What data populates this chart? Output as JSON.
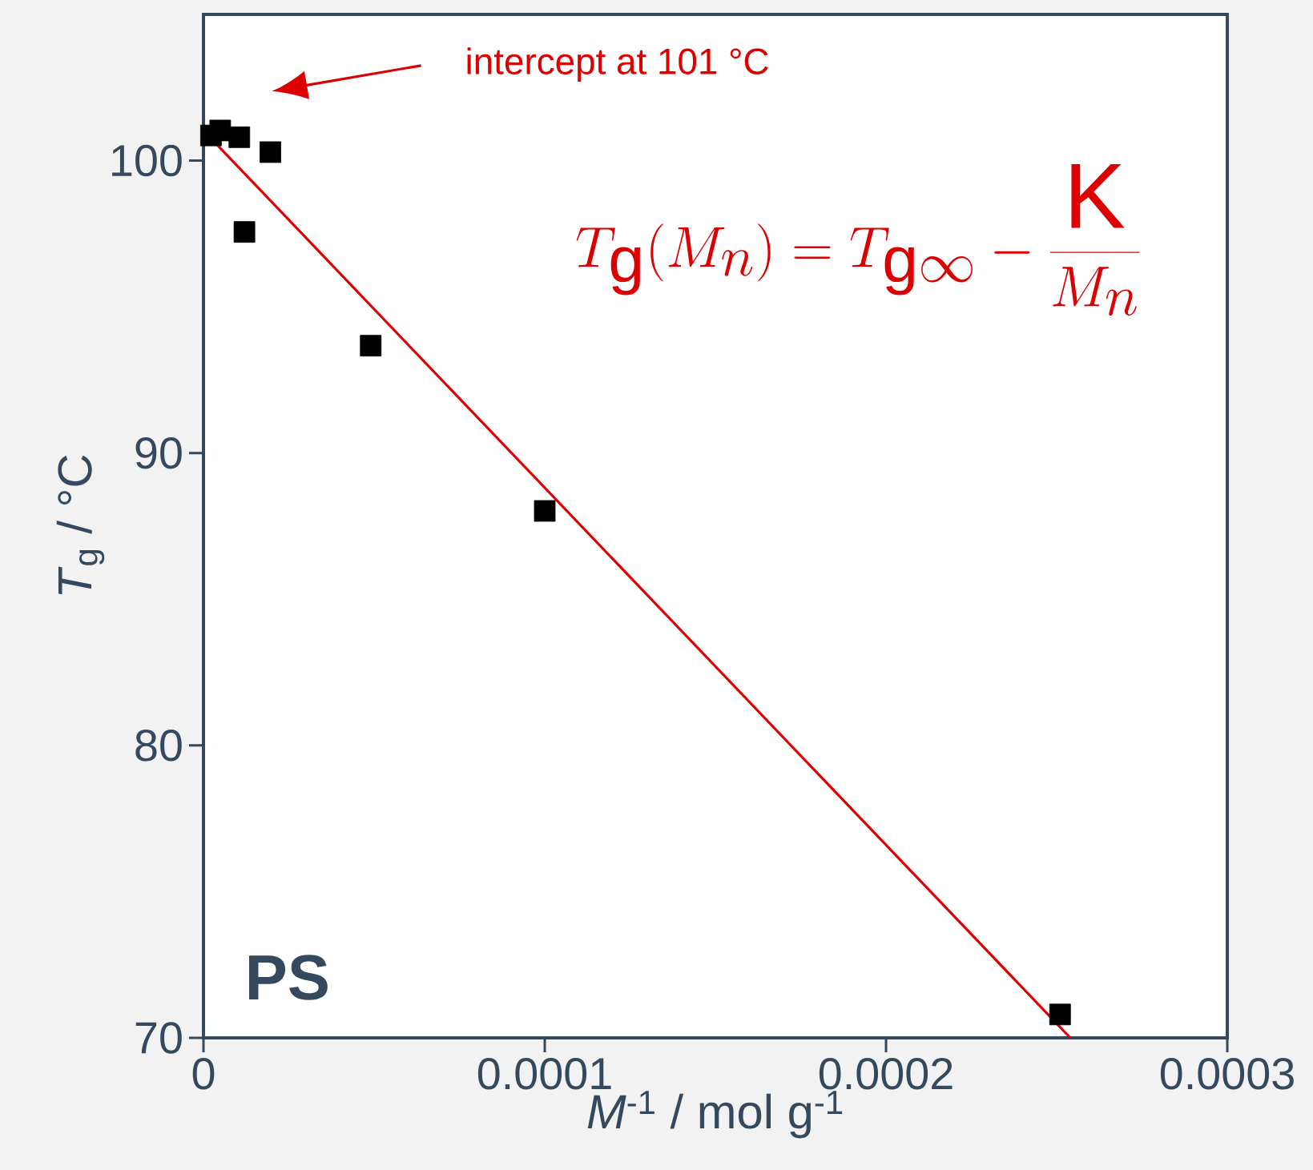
{
  "chart_data": {
    "type": "scatter",
    "xlabel": "*M*$^{-1}$ / mol g$^{-1}$",
    "ylabel": "*T*$_{g}$ / °C",
    "xlim": [
      0,
      0.0003
    ],
    "ylim": [
      70,
      105
    ],
    "xticks": [
      0,
      0.0001,
      0.0002,
      0.0003
    ],
    "yticks": [
      70,
      80,
      90,
      100
    ],
    "grid": false,
    "series": [
      {
        "marker": "square",
        "color": "#000000",
        "x": [
          2.2e-06,
          4.9e-06,
          1.05e-05,
          1.96e-05,
          1.2e-05,
          4.9e-05,
          0.0001,
          0.000251
        ],
        "values": [
          100.86,
          101.03,
          100.8,
          100.29,
          97.56,
          93.67,
          88.02,
          70.8
        ]
      },
      {
        "type": "line",
        "color": "#dd0000",
        "x": [
          4e-06,
          0.000254
        ],
        "values": [
          100.54,
          70
        ]
      }
    ],
    "annotations": [
      "intercept at 101 °C",
      "T_\\mathrm{g}(M_n) = T_{\\mathrm{g}\\infty} - \\frac{\\mathrm{K}}{M_n}",
      "PS"
    ]
  }
}
